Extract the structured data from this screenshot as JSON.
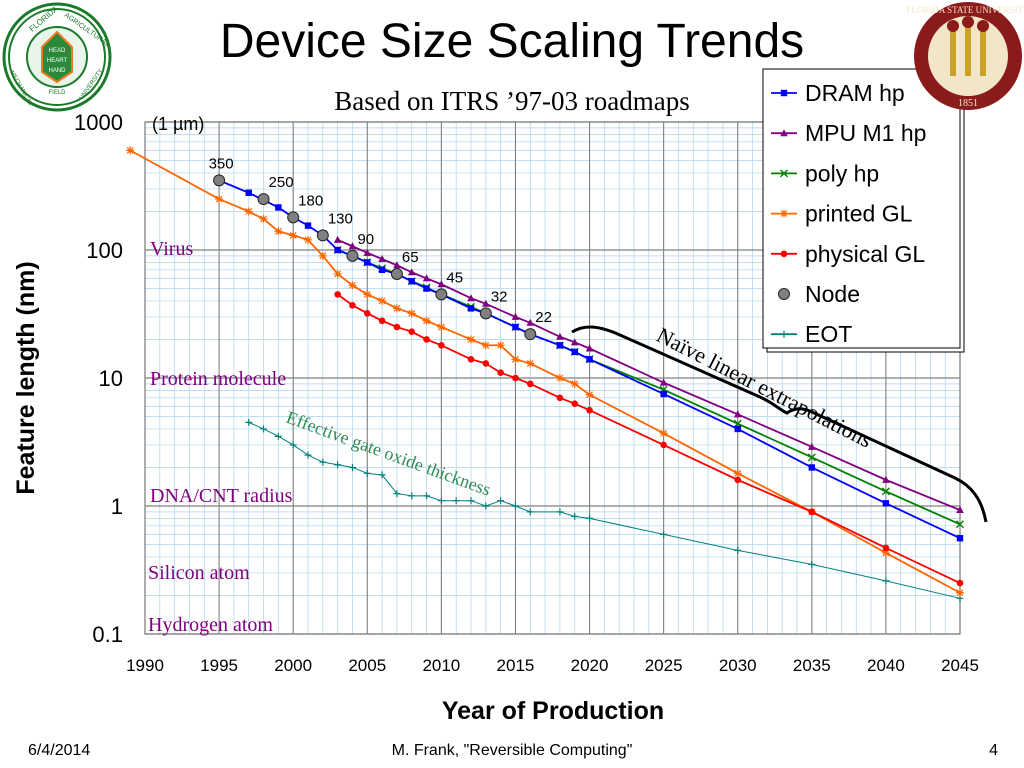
{
  "slide": {
    "title": "Device Size Scaling Trends",
    "subtitle": "Based on ITRS ’97-03 roadmaps",
    "footer_date": "6/4/2014",
    "footer_center": "M. Frank, \"Reversible Computing\"",
    "footer_page": "4",
    "logo_left_text": [
      "FLORIDA",
      "AGRICULTURAL",
      "MECHANICAL",
      "UNIVERSITY",
      "HEAD",
      "HEART",
      "HAND",
      "FIELD"
    ],
    "logo_right_text": [
      "FLORIDA STATE UNIVERSITY",
      "1851"
    ]
  },
  "chart_data": {
    "type": "line",
    "xlabel": "Year of Production",
    "ylabel": "Feature length (nm)",
    "xlim": [
      1990,
      2045
    ],
    "ylim": [
      0.1,
      1000
    ],
    "yscale": "log",
    "grid": true,
    "x_ticks": [
      "1990",
      "1995",
      "2000",
      "2005",
      "2010",
      "2015",
      "2020",
      "2025",
      "2030",
      "2035",
      "2040",
      "2045"
    ],
    "y_ticks": [
      "1000",
      "100",
      "10",
      "1",
      "0.1"
    ],
    "legend": {
      "placement": "top-right",
      "entries": [
        "DRAM hp",
        "MPU M1 hp",
        "poly hp",
        "printed GL",
        "physical GL",
        "Node",
        "EOT"
      ]
    },
    "series": [
      {
        "name": "DRAM hp",
        "color": "#0000ff",
        "marker": "square",
        "x": [
          1995,
          1997,
          1999,
          2000,
          2001,
          2002,
          2003,
          2004,
          2005,
          2006,
          2007,
          2008,
          2009,
          2010,
          2012,
          2013,
          2015,
          2016,
          2018,
          2019,
          2020,
          2025,
          2030,
          2035,
          2040,
          2045
        ],
        "y": [
          350,
          280,
          215,
          180,
          155,
          130,
          100,
          90,
          80,
          70,
          65,
          57,
          50,
          45,
          35,
          32,
          25,
          22,
          18,
          16,
          14,
          7.5,
          4,
          2,
          1.05,
          0.56
        ]
      },
      {
        "name": "MPU M1 hp",
        "color": "#800080",
        "marker": "triangle",
        "x": [
          2003,
          2004,
          2005,
          2006,
          2007,
          2008,
          2009,
          2010,
          2012,
          2013,
          2015,
          2016,
          2018,
          2019,
          2020,
          2025,
          2030,
          2035,
          2040,
          2045
        ],
        "y": [
          120,
          107,
          95,
          85,
          76,
          67,
          60,
          54,
          42,
          38,
          30,
          27,
          21,
          19,
          17,
          9.2,
          5.2,
          2.9,
          1.6,
          0.93
        ]
      },
      {
        "name": "poly hp",
        "color": "#008000",
        "marker": "x",
        "x": [
          2003,
          2004,
          2005,
          2006,
          2007,
          2008,
          2009,
          2010,
          2012,
          2013,
          2015,
          2016,
          2018,
          2019,
          2020,
          2025,
          2030,
          2035,
          2040,
          2045
        ],
        "y": [
          100,
          90,
          80,
          72,
          65,
          57,
          51,
          45,
          36,
          32,
          25,
          22,
          18,
          16,
          14,
          8.1,
          4.4,
          2.4,
          1.3,
          0.72
        ]
      },
      {
        "name": "printed GL",
        "color": "#ff6600",
        "marker": "star",
        "x": [
          1989,
          1995,
          1997,
          1998,
          1999,
          2000,
          2001,
          2002,
          2003,
          2004,
          2005,
          2006,
          2007,
          2008,
          2009,
          2010,
          2012,
          2013,
          2014,
          2015,
          2016,
          2018,
          2019,
          2020,
          2025,
          2030,
          2035,
          2040,
          2045
        ],
        "y": [
          600,
          250,
          200,
          175,
          140,
          130,
          120,
          90,
          65,
          53,
          45,
          40,
          35,
          32,
          28,
          25,
          20,
          18,
          18,
          14,
          13,
          10,
          9,
          7.4,
          3.7,
          1.8,
          0.9,
          0.43,
          0.21
        ]
      },
      {
        "name": "physical GL",
        "color": "#ff0000",
        "marker": "dot",
        "x": [
          2003,
          2004,
          2005,
          2006,
          2007,
          2008,
          2009,
          2010,
          2012,
          2013,
          2014,
          2015,
          2016,
          2018,
          2019,
          2020,
          2025,
          2030,
          2035,
          2040,
          2045
        ],
        "y": [
          45,
          37,
          32,
          28,
          25,
          23,
          20,
          18,
          14,
          13,
          11,
          10,
          9,
          7,
          6.3,
          5.6,
          3,
          1.6,
          0.9,
          0.47,
          0.25
        ]
      },
      {
        "name": "Node",
        "color": "#808080",
        "marker": "circle",
        "x": [
          1995,
          1998,
          2000,
          2002,
          2004,
          2007,
          2010,
          2013,
          2016
        ],
        "y": [
          350,
          250,
          180,
          130,
          90,
          65,
          45,
          32,
          22
        ],
        "labels": [
          "350",
          "250",
          "180",
          "130",
          "90",
          "65",
          "45",
          "32",
          "22"
        ]
      },
      {
        "name": "EOT",
        "color": "#008080",
        "marker": "plus",
        "x": [
          1997,
          1998,
          1999,
          2000,
          2001,
          2002,
          2003,
          2004,
          2005,
          2006,
          2007,
          2008,
          2009,
          2010,
          2011,
          2012,
          2013,
          2014,
          2015,
          2016,
          2018,
          2019,
          2020,
          2025,
          2030,
          2035,
          2040,
          2045
        ],
        "y": [
          4.5,
          4,
          3.5,
          3,
          2.5,
          2.2,
          2.1,
          2,
          1.8,
          1.75,
          1.25,
          1.2,
          1.2,
          1.1,
          1.1,
          1.1,
          1.0,
          1.1,
          1.0,
          0.9,
          0.9,
          0.83,
          0.8,
          0.6,
          0.45,
          0.35,
          0.26,
          0.19
        ]
      }
    ],
    "annotations": {
      "unit_note": "(1 µm)",
      "naive_extrapolation": "Naïve linear extrapolations",
      "eot_label": "Effective gate oxide thickness",
      "ref_virus": "Virus",
      "ref_protein": "Protein molecule",
      "ref_dna": "DNA/CNT radius",
      "ref_silicon": "Silicon atom",
      "ref_hydrogen": "Hydrogen atom"
    }
  }
}
